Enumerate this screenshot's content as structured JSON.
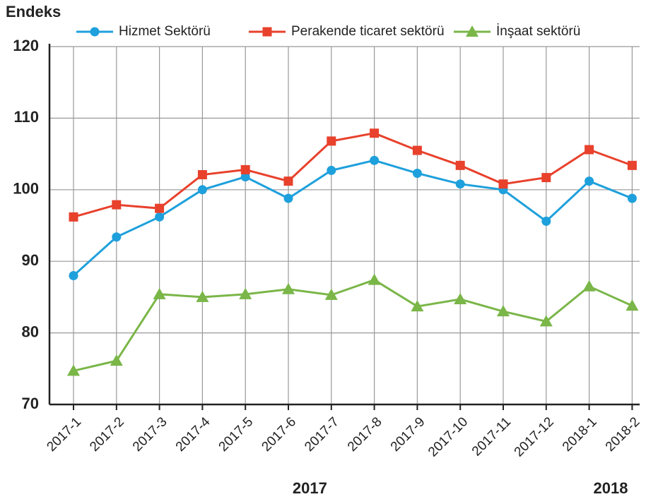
{
  "chart_data": {
    "type": "line",
    "y_axis_label": "Endeks",
    "categories": [
      "2017-1",
      "2017-2",
      "2017-3",
      "2017-4",
      "2017-5",
      "2017-6",
      "2017-7",
      "2017-8",
      "2017-9",
      "2017-10",
      "2017-11",
      "2017-12",
      "2018-1",
      "2018-2"
    ],
    "series": [
      {
        "name": "Hizmet Sektörü",
        "color": "#1ea0dc",
        "marker": "circle",
        "values": [
          88.0,
          93.4,
          96.2,
          100.0,
          101.8,
          98.8,
          102.7,
          104.1,
          102.3,
          100.8,
          100.0,
          95.6,
          101.2,
          98.8
        ]
      },
      {
        "name": "Perakende ticaret sektörü",
        "color": "#e8412c",
        "marker": "square",
        "values": [
          96.2,
          97.9,
          97.4,
          102.1,
          102.8,
          101.2,
          106.8,
          107.9,
          105.5,
          103.4,
          100.8,
          101.7,
          105.6,
          103.4
        ]
      },
      {
        "name": "İnşaat sektörü",
        "color": "#7ab648",
        "marker": "triangle",
        "values": [
          74.7,
          76.1,
          85.4,
          85.0,
          85.4,
          86.1,
          85.3,
          87.4,
          83.7,
          84.7,
          83.0,
          81.6,
          86.5,
          83.8
        ]
      }
    ],
    "ylim": [
      70,
      120
    ],
    "yticks": [
      70,
      80,
      90,
      100,
      110,
      120
    ],
    "grid": true,
    "legend": "top",
    "group_labels": [
      {
        "label": "2017",
        "from": 0,
        "to": 11
      },
      {
        "label": "2018",
        "from": 12,
        "to": 13
      }
    ]
  }
}
